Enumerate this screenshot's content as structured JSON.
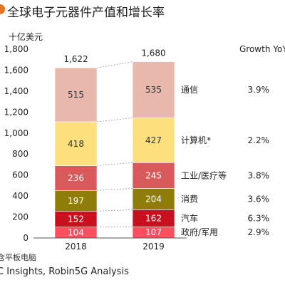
{
  "title": "全球电子元器件产值和增长率",
  "footnote": "含平板电脑",
  "source": "C Insights, Robin5G Analysis",
  "colors": {
    "accent": "#e8731f",
    "segments": [
      "#ff4f5e",
      "#c8101e",
      "#8f7d0a",
      "#d85a5a",
      "#fbe07d",
      "#e8b8ad"
    ],
    "segment_text": [
      "#ffffff",
      "#ffffff",
      "#ffffff",
      "#ffffff",
      "#333333",
      "#333333"
    ]
  },
  "chart_data": {
    "type": "bar",
    "stacked": true,
    "categories": [
      "2018",
      "2019"
    ],
    "ylabel": "十亿美元",
    "ylim": [
      0,
      1800
    ],
    "yticks": [
      "0",
      "200",
      "400",
      "600",
      "800",
      "1,000",
      "1,200",
      "1,400",
      "1,600",
      "1,800"
    ],
    "totals": [
      "1,622",
      "1,680"
    ],
    "growth_header": "Growth YoY",
    "series": [
      {
        "name": "政府/军用",
        "values": [
          104,
          107
        ],
        "growth": "2.9%"
      },
      {
        "name": "汽车",
        "values": [
          152,
          162
        ],
        "growth": "6.3%"
      },
      {
        "name": "消费",
        "values": [
          197,
          204
        ],
        "growth": "3.6%"
      },
      {
        "name": "工业/医疗等",
        "values": [
          236,
          245
        ],
        "growth": "3.8%"
      },
      {
        "name": "计算机*",
        "values": [
          418,
          427
        ],
        "growth": "2.2%"
      },
      {
        "name": "通信",
        "values": [
          515,
          535
        ],
        "growth": "3.9%"
      }
    ]
  }
}
